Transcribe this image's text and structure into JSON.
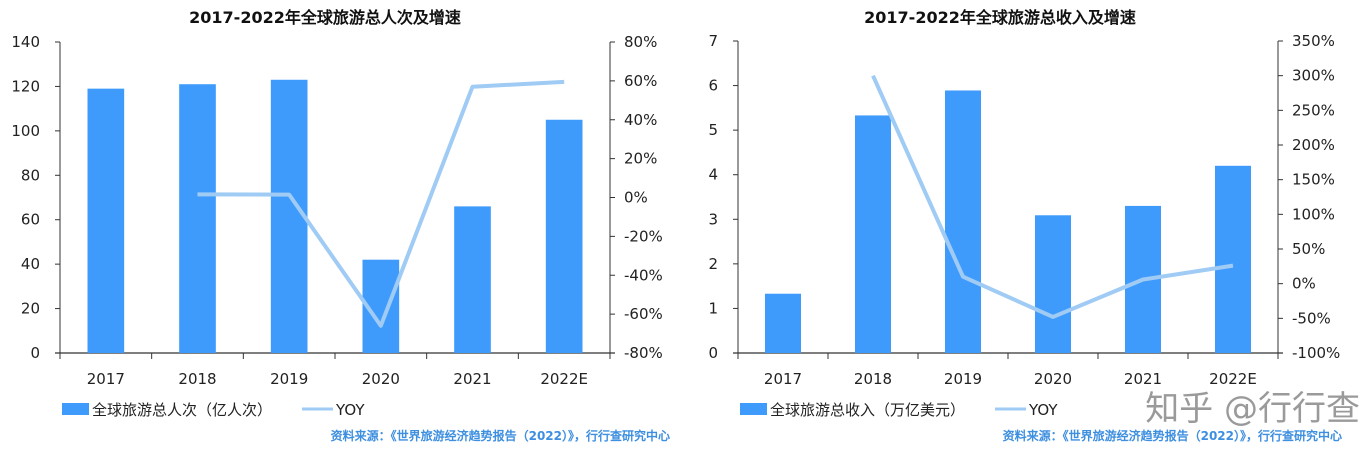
{
  "chart_data": [
    {
      "type": "bar",
      "title": "2017-2022年全球旅游总人次及增速",
      "categories": [
        "2017",
        "2018",
        "2019",
        "2020",
        "2021",
        "2022E"
      ],
      "series": [
        {
          "name": "全球旅游总人次（亿人次）",
          "type": "bar",
          "axis": "left",
          "values": [
            119,
            121,
            123,
            42,
            66,
            105
          ],
          "color": "#3f9bfb"
        },
        {
          "name": "YOY",
          "type": "line",
          "axis": "right",
          "values": [
            null,
            1.6,
            1.5,
            -66,
            57,
            59.5
          ],
          "color": "#9fcbf4"
        }
      ],
      "left_axis": {
        "ylim": [
          0,
          140
        ],
        "ticks": [
          "0",
          "20",
          "40",
          "60",
          "80",
          "100",
          "120",
          "140"
        ],
        "step": 20
      },
      "right_axis": {
        "ylim": [
          -80,
          80
        ],
        "ticks": [
          "-80%",
          "-60%",
          "-40%",
          "-20%",
          "0%",
          "20%",
          "40%",
          "60%",
          "80%"
        ],
        "step": 20
      },
      "legend": "bottom-left",
      "grid": false,
      "source": "资料来源：《世界旅游经济趋势报告（2022）》，行行查研究中心"
    },
    {
      "type": "bar",
      "title": "2017-2022年全球旅游总收入及增速",
      "categories": [
        "2017",
        "2018",
        "2019",
        "2020",
        "2021",
        "2022E"
      ],
      "series": [
        {
          "name": "全球旅游总收入（万亿美元）",
          "type": "bar",
          "axis": "left",
          "values": [
            1.33,
            5.33,
            5.89,
            3.09,
            3.3,
            4.2
          ],
          "color": "#3f9bfb"
        },
        {
          "name": "YOY",
          "type": "line",
          "axis": "right",
          "values": [
            null,
            300,
            10,
            -48,
            6,
            26
          ],
          "color": "#9fcbf4"
        }
      ],
      "left_axis": {
        "ylim": [
          0,
          7
        ],
        "ticks": [
          "0",
          "1",
          "2",
          "3",
          "4",
          "5",
          "6",
          "7"
        ],
        "step": 1
      },
      "right_axis": {
        "ylim": [
          -100,
          350
        ],
        "ticks": [
          "-100%",
          "-50%",
          "0%",
          "50%",
          "100%",
          "150%",
          "200%",
          "250%",
          "300%",
          "350%"
        ],
        "step": 50
      },
      "legend": "bottom-left",
      "grid": false,
      "source": "资料来源：《世界旅游经济趋势报告（2022）》，行行查研究中心"
    }
  ],
  "watermark": "知乎 @行行查"
}
